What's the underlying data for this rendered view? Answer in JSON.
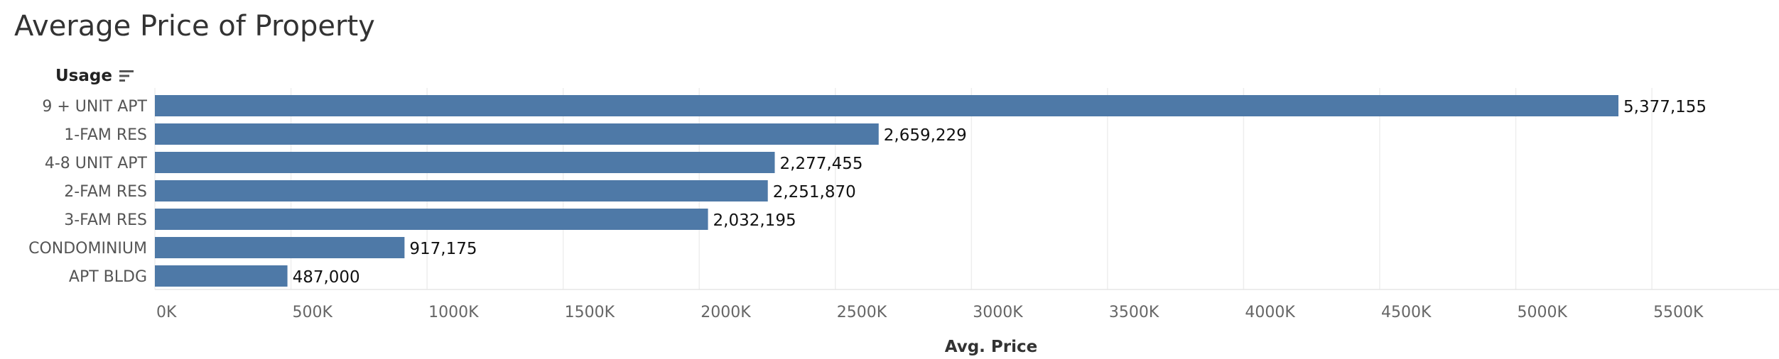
{
  "chart_data": {
    "type": "bar",
    "orientation": "horizontal",
    "title": "Average Price of Property",
    "category_header": "Usage",
    "xlabel": "Avg. Price",
    "categories": [
      "9 + UNIT APT",
      "1-FAM RES",
      "4-8 UNIT APT",
      "2-FAM RES",
      "3-FAM RES",
      "CONDOMINIUM",
      "APT BLDG"
    ],
    "values": [
      5377155,
      2659229,
      2277455,
      2251870,
      2032195,
      917175,
      487000
    ],
    "value_labels": [
      "5,377,155",
      "2,659,229",
      "2,277,455",
      "2,251,870",
      "2,032,195",
      "917,175",
      "487,000"
    ],
    "xlim": [
      0,
      5800000
    ],
    "xticks": [
      0,
      500000,
      1000000,
      1500000,
      2000000,
      2500000,
      3000000,
      3500000,
      4000000,
      4500000,
      5000000,
      5500000
    ],
    "xtick_labels": [
      "0K",
      "500K",
      "1000K",
      "1500K",
      "2000K",
      "2500K",
      "3000K",
      "3500K",
      "4000K",
      "4500K",
      "5000K",
      "5500K"
    ],
    "grid": true,
    "colors": {
      "bar": "#4e79a7",
      "grid": "#eeeeee"
    }
  },
  "icons": {
    "sort": "sort-descending-icon"
  }
}
